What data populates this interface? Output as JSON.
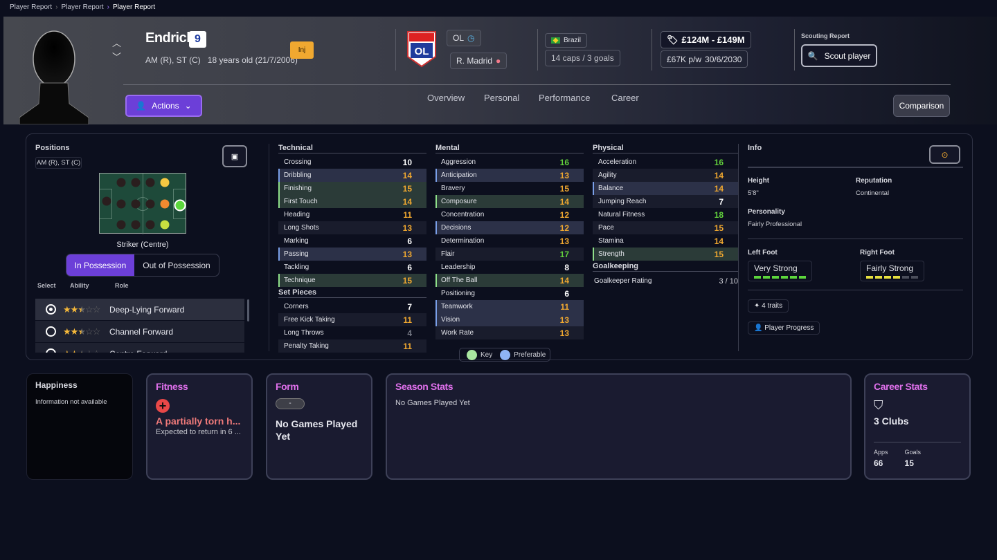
{
  "breadcrumb": [
    "Player Report",
    "Player Report",
    "Player Report"
  ],
  "player": {
    "name": "Endrick",
    "number": "9",
    "positions": "AM (R), ST (C)",
    "age": "18 years old (21/7/2006)",
    "status_badge": "Inj"
  },
  "clubs": {
    "current": "OL",
    "parent": "R. Madrid"
  },
  "nation": {
    "name": "Brazil",
    "caps": "14 caps / 3 goals"
  },
  "contract": {
    "value": "£124M - £149M",
    "wage": "£67K p/w",
    "expiry": "30/6/2030"
  },
  "scouting": {
    "label": "Scouting Report",
    "button": "Scout player"
  },
  "actions_label": "Actions",
  "tabs": [
    "Overview",
    "Personal",
    "Performance",
    "Career"
  ],
  "comparison_label": "Comparison",
  "positions_panel": {
    "title": "Positions",
    "pill": "AM (R), ST (C)",
    "selected_position": "Striker (Centre)",
    "toggle": [
      "In Possession",
      "Out of Possession"
    ],
    "headers": [
      "Select",
      "Ability",
      "Role"
    ],
    "roles": [
      {
        "name": "Deep-Lying Forward",
        "stars": 2.5,
        "selected": true
      },
      {
        "name": "Channel Forward",
        "stars": 2.5,
        "selected": false
      },
      {
        "name": "Centre Forward",
        "stars": 2.5,
        "selected": false
      }
    ]
  },
  "attributes": {
    "technical": {
      "title": "Technical",
      "items": [
        [
          "Crossing",
          10,
          ""
        ],
        [
          "Dribbling",
          14,
          "pref"
        ],
        [
          "Finishing",
          15,
          "key"
        ],
        [
          "First Touch",
          14,
          "key"
        ],
        [
          "Heading",
          11,
          ""
        ],
        [
          "Long Shots",
          13,
          ""
        ],
        [
          "Marking",
          6,
          ""
        ],
        [
          "Passing",
          13,
          "pref"
        ],
        [
          "Tackling",
          6,
          ""
        ],
        [
          "Technique",
          15,
          "key"
        ]
      ]
    },
    "set_pieces": {
      "title": "Set Pieces",
      "items": [
        [
          "Corners",
          7,
          ""
        ],
        [
          "Free Kick Taking",
          11,
          ""
        ],
        [
          "Long Throws",
          4,
          ""
        ],
        [
          "Penalty Taking",
          11,
          ""
        ]
      ]
    },
    "mental": {
      "title": "Mental",
      "items": [
        [
          "Aggression",
          16,
          ""
        ],
        [
          "Anticipation",
          13,
          "pref"
        ],
        [
          "Bravery",
          15,
          ""
        ],
        [
          "Composure",
          14,
          "key"
        ],
        [
          "Concentration",
          12,
          ""
        ],
        [
          "Decisions",
          12,
          "pref"
        ],
        [
          "Determination",
          13,
          ""
        ],
        [
          "Flair",
          17,
          ""
        ],
        [
          "Leadership",
          8,
          ""
        ],
        [
          "Off The Ball",
          14,
          "key"
        ],
        [
          "Positioning",
          6,
          ""
        ],
        [
          "Teamwork",
          11,
          "pref"
        ],
        [
          "Vision",
          13,
          "pref"
        ],
        [
          "Work Rate",
          13,
          ""
        ]
      ]
    },
    "physical": {
      "title": "Physical",
      "items": [
        [
          "Acceleration",
          16,
          ""
        ],
        [
          "Agility",
          14,
          ""
        ],
        [
          "Balance",
          14,
          "pref"
        ],
        [
          "Jumping Reach",
          7,
          ""
        ],
        [
          "Natural Fitness",
          18,
          ""
        ],
        [
          "Pace",
          15,
          ""
        ],
        [
          "Stamina",
          14,
          ""
        ],
        [
          "Strength",
          15,
          "key"
        ]
      ]
    },
    "goalkeeping": {
      "title": "Goalkeeping",
      "label": "Goalkeeper Rating",
      "value": "3 / 10"
    }
  },
  "legend": {
    "key": "Key",
    "preferable": "Preferable",
    "key_color": "#a8e6a0",
    "pref_color": "#8fb4f5"
  },
  "info": {
    "title": "Info",
    "height_label": "Height",
    "height": "5'8\"",
    "reputation_label": "Reputation",
    "reputation": "Continental",
    "personality_label": "Personality",
    "personality": "Fairly Professional",
    "left_foot_label": "Left Foot",
    "left_foot": "Very Strong",
    "left_foot_level": 6,
    "right_foot_label": "Right Foot",
    "right_foot": "Fairly Strong",
    "right_foot_level": 4,
    "traits": "4 traits",
    "progress": "Player Progress"
  },
  "cards": {
    "happiness": {
      "title": "Happiness",
      "text": "Information not available"
    },
    "fitness": {
      "title": "Fitness",
      "injury": "A partially torn h...",
      "return": "Expected to return in 6 ..."
    },
    "form": {
      "title": "Form",
      "badge": "-",
      "text": "No Games Played Yet"
    },
    "season": {
      "title": "Season Stats",
      "text": "No Games Played Yet"
    },
    "career": {
      "title": "Career Stats",
      "clubs": "3 Clubs",
      "apps_label": "Apps",
      "apps": "66",
      "goals_label": "Goals",
      "goals": "15"
    }
  }
}
